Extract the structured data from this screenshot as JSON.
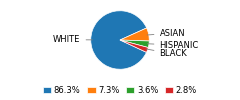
{
  "chart_data": {
    "type": "pie",
    "categories": [
      "WHITE",
      "ASIAN",
      "HISPANIC",
      "BLACK"
    ],
    "values": [
      86.3,
      7.3,
      3.6,
      2.8
    ],
    "value_labels": [
      "86.3%",
      "7.3%",
      "3.6%",
      "2.8%"
    ],
    "legend": "lower center"
  }
}
